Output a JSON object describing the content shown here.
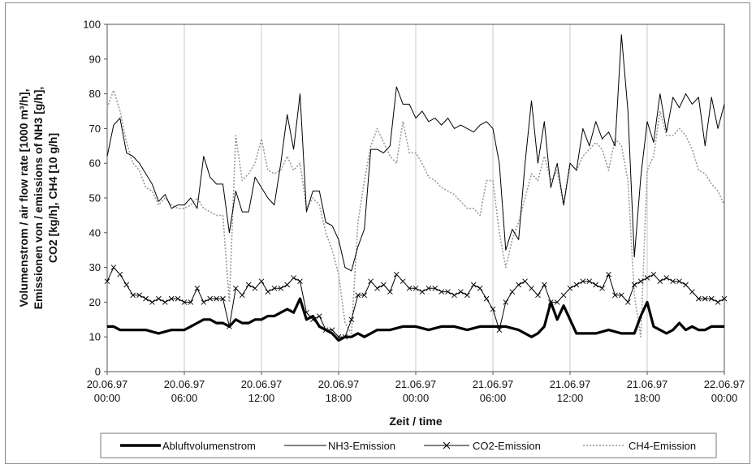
{
  "chart_data": {
    "type": "line",
    "title": "",
    "xlabel": "Zeit / time",
    "ylabel_lines": [
      "Volumenstrom / air flow rate [1000 m³/h],",
      "Emissionen von / emissions of NH3 [g/h],",
      "CO2 [kg/h], CH4 [10 g/h]"
    ],
    "ylim": [
      0,
      100
    ],
    "yticks": [
      0,
      10,
      20,
      30,
      40,
      50,
      60,
      70,
      80,
      90,
      100
    ],
    "xlim": [
      0,
      48
    ],
    "x_unit": "hours since 20.06.97 00:00",
    "xticks": [
      {
        "x": 0,
        "date": "20.06.97",
        "time": "00:00"
      },
      {
        "x": 6,
        "date": "20.06.97",
        "time": "06:00"
      },
      {
        "x": 12,
        "date": "20.06.97",
        "time": "12:00"
      },
      {
        "x": 18,
        "date": "20.06.97",
        "time": "18:00"
      },
      {
        "x": 24,
        "date": "21.06.97",
        "time": "00:00"
      },
      {
        "x": 30,
        "date": "21.06.97",
        "time": "06:00"
      },
      {
        "x": 36,
        "date": "21.06.97",
        "time": "12:00"
      },
      {
        "x": 42,
        "date": "21.06.97",
        "time": "18:00"
      },
      {
        "x": 48,
        "date": "22.06.97",
        "time": "00:00"
      }
    ],
    "grid": "vertical",
    "legend": "bottom",
    "series": [
      {
        "name": "Abluftvolumenstrom",
        "style": "thick",
        "color": "#000000",
        "x": [
          0,
          0.5,
          1,
          1.5,
          2,
          3,
          4,
          5,
          5.5,
          6,
          6.5,
          7,
          7.5,
          8,
          8.5,
          9,
          9.5,
          10,
          10.5,
          11,
          11.5,
          12,
          12.5,
          13,
          13.5,
          14,
          14.5,
          15,
          15.5,
          16,
          16.5,
          17,
          17.5,
          18,
          18.5,
          19,
          19.5,
          20,
          21,
          22,
          23,
          24,
          25,
          26,
          27,
          28,
          29,
          30,
          31,
          32,
          33,
          33.5,
          34,
          34.5,
          35,
          35.5,
          36,
          36.5,
          37,
          38,
          39,
          40,
          41,
          41.5,
          42,
          42.5,
          43,
          43.5,
          44,
          44.5,
          45,
          45.5,
          46,
          46.5,
          47,
          48
        ],
        "y": [
          13,
          13,
          12,
          12,
          12,
          12,
          11,
          12,
          12,
          12,
          13,
          14,
          15,
          15,
          14,
          14,
          13,
          15,
          14,
          14,
          15,
          15,
          16,
          16,
          17,
          18,
          17,
          21,
          15,
          16,
          13,
          12,
          11,
          9,
          10,
          10,
          11,
          10,
          12,
          12,
          13,
          13,
          12,
          13,
          13,
          12,
          13,
          13,
          13,
          12,
          10,
          11,
          13,
          20,
          15,
          19,
          15,
          11,
          11,
          11,
          12,
          11,
          11,
          16,
          20,
          13,
          12,
          11,
          12,
          14,
          12,
          13,
          12,
          12,
          13,
          13
        ]
      },
      {
        "name": "NH3-Emission",
        "style": "thin",
        "color": "#000000",
        "x": [
          0,
          0.5,
          1,
          1.5,
          2,
          2.5,
          3,
          3.5,
          4,
          4.5,
          5,
          5.5,
          6,
          6.5,
          7,
          7.5,
          8,
          8.5,
          9,
          9.5,
          10,
          10.5,
          11,
          11.5,
          12,
          12.5,
          13,
          13.5,
          14,
          14.5,
          15,
          15.5,
          16,
          16.5,
          17,
          17.5,
          18,
          18.5,
          19,
          19.5,
          20,
          20.5,
          21,
          21.5,
          22,
          22.5,
          23,
          23.5,
          24,
          24.5,
          25,
          25.5,
          26,
          26.5,
          27,
          27.5,
          28,
          28.5,
          29,
          29.5,
          30,
          30.5,
          31,
          31.5,
          32,
          32.5,
          33,
          33.5,
          34,
          34.5,
          35,
          35.5,
          36,
          36.5,
          37,
          37.5,
          38,
          38.5,
          39,
          39.5,
          40,
          40.5,
          41,
          41.5,
          42,
          42.5,
          43,
          43.5,
          44,
          44.5,
          45,
          45.5,
          46,
          46.5,
          47,
          47.5,
          48
        ],
        "y": [
          62,
          71,
          73,
          63,
          62,
          60,
          57,
          54,
          49,
          51,
          47,
          48,
          48,
          50,
          47,
          62,
          56,
          54,
          54,
          40,
          52,
          46,
          46,
          56,
          53,
          50,
          48,
          60,
          74,
          64,
          80,
          46,
          52,
          52,
          43,
          42,
          38,
          30,
          29,
          36,
          41,
          64,
          64,
          63,
          65,
          82,
          77,
          77,
          73,
          75,
          72,
          73,
          71,
          73,
          70,
          71,
          70,
          69,
          71,
          72,
          70,
          60,
          35,
          41,
          38,
          60,
          78,
          60,
          72,
          53,
          60,
          48,
          60,
          58,
          70,
          65,
          72,
          67,
          69,
          65,
          97,
          75,
          33,
          56,
          72,
          66,
          80,
          69,
          79,
          76,
          80,
          77,
          79,
          65,
          79,
          70,
          77
        ]
      },
      {
        "name": "CO2-Emission",
        "style": "cross",
        "color": "#000000",
        "x": [
          0,
          0.5,
          1,
          1.5,
          2,
          2.5,
          3,
          3.5,
          4,
          4.5,
          5,
          5.5,
          6,
          6.5,
          7,
          7.5,
          8,
          8.5,
          9,
          9.5,
          10,
          10.5,
          11,
          11.5,
          12,
          12.5,
          13,
          13.5,
          14,
          14.5,
          15,
          15.5,
          16,
          16.5,
          17,
          17.5,
          18,
          18.5,
          19,
          19.5,
          20,
          20.5,
          21,
          21.5,
          22,
          22.5,
          23,
          23.5,
          24,
          24.5,
          25,
          25.5,
          26,
          26.5,
          27,
          27.5,
          28,
          28.5,
          29,
          29.5,
          30,
          30.5,
          31,
          31.5,
          32,
          32.5,
          33,
          33.5,
          34,
          34.5,
          35,
          35.5,
          36,
          36.5,
          37,
          37.5,
          38,
          38.5,
          39,
          39.5,
          40,
          40.5,
          41,
          41.5,
          42,
          42.5,
          43,
          43.5,
          44,
          44.5,
          45,
          45.5,
          46,
          46.5,
          47,
          47.5,
          48
        ],
        "y": [
          26,
          30,
          28,
          25,
          22,
          22,
          21,
          20,
          21,
          20,
          21,
          21,
          20,
          20,
          24,
          20,
          21,
          21,
          21,
          13,
          24,
          22,
          25,
          24,
          26,
          23,
          24,
          24,
          25,
          27,
          26,
          17,
          15,
          16,
          12,
          12,
          10,
          10,
          15,
          22,
          22,
          26,
          24,
          25,
          23,
          28,
          26,
          24,
          24,
          23,
          24,
          24,
          23,
          23,
          22,
          23,
          22,
          25,
          24,
          21,
          18,
          12,
          20,
          23,
          25,
          26,
          24,
          22,
          25,
          20,
          20,
          22,
          24,
          25,
          26,
          26,
          25,
          24,
          28,
          22,
          22,
          20,
          25,
          26,
          27,
          28,
          26,
          27,
          26,
          26,
          25,
          23,
          21,
          21,
          21,
          20,
          21
        ]
      },
      {
        "name": "CH4-Emission",
        "style": "dotted",
        "color": "#9a9a9a",
        "x": [
          0,
          0.5,
          1,
          1.5,
          2,
          2.5,
          3,
          3.5,
          4,
          4.5,
          5,
          5.5,
          6,
          6.5,
          7,
          7.5,
          8,
          8.5,
          9,
          9.5,
          10,
          10.5,
          11,
          11.5,
          12,
          12.5,
          13,
          13.5,
          14,
          14.5,
          15,
          15.5,
          16,
          16.5,
          17,
          17.5,
          18,
          18.5,
          19,
          19.5,
          20,
          20.5,
          21,
          21.5,
          22,
          22.5,
          23,
          23.5,
          24,
          24.5,
          25,
          25.5,
          26,
          26.5,
          27,
          27.5,
          28,
          28.5,
          29,
          29.5,
          30,
          30.5,
          31,
          31.5,
          32,
          32.5,
          33,
          33.5,
          34,
          34.5,
          35,
          35.5,
          36,
          36.5,
          37,
          37.5,
          38,
          38.5,
          39,
          39.5,
          40,
          40.5,
          41,
          41.5,
          42,
          42.5,
          43,
          43.5,
          44,
          44.5,
          45,
          45.5,
          46,
          46.5,
          47,
          47.5,
          48
        ],
        "y": [
          76,
          81,
          75,
          66,
          60,
          58,
          53,
          52,
          48,
          50,
          48,
          47,
          47,
          48,
          50,
          47,
          46,
          45,
          45,
          20,
          68,
          55,
          57,
          60,
          67,
          58,
          57,
          58,
          62,
          58,
          60,
          47,
          50,
          48,
          40,
          35,
          28,
          14,
          11,
          43,
          55,
          65,
          70,
          66,
          62,
          60,
          72,
          63,
          63,
          60,
          56,
          55,
          53,
          52,
          51,
          49,
          47,
          47,
          45,
          55,
          55,
          40,
          30,
          38,
          43,
          50,
          57,
          55,
          62,
          55,
          58,
          48,
          60,
          58,
          62,
          64,
          66,
          64,
          58,
          67,
          65,
          55,
          22,
          10,
          58,
          62,
          75,
          68,
          68,
          70,
          68,
          64,
          58,
          57,
          54,
          52,
          48
        ]
      }
    ]
  }
}
